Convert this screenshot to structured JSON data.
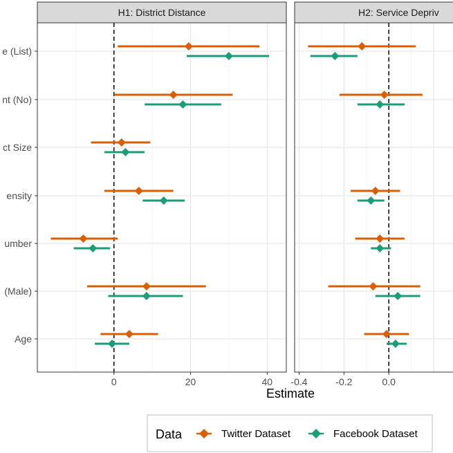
{
  "chart_data": {
    "type": "forest",
    "xlabel": "Estimate",
    "variables": [
      "Age",
      "(Male)",
      "umber",
      "ensity",
      "ct Size",
      "nt (No)",
      "e (List)"
    ],
    "panels": [
      {
        "title": "H1: District Distance",
        "xlim": [
          -20,
          45
        ],
        "xticks": [
          0,
          20,
          40
        ],
        "xtick_labels": [
          "0",
          "20",
          "40"
        ],
        "series": [
          {
            "name": "Twitter Dataset",
            "color": "#d95f02",
            "estimates": [
              4,
              8.5,
              -8,
              6.5,
              2,
              15.5,
              19.5
            ],
            "lower": [
              -3.5,
              -7,
              -16.5,
              -2.5,
              -6,
              0,
              1
            ],
            "upper": [
              11.5,
              24,
              1,
              15.5,
              9.5,
              31,
              38
            ]
          },
          {
            "name": "Facebook Dataset",
            "color": "#1b9e77",
            "estimates": [
              -0.5,
              8.5,
              -5.5,
              13,
              3,
              18,
              30
            ],
            "lower": [
              -5,
              -1.5,
              -10.5,
              7.5,
              -2.5,
              8,
              19
            ],
            "upper": [
              4,
              18,
              -1,
              18.5,
              8,
              28,
              40.5
            ]
          }
        ]
      },
      {
        "title": "H2: Service Depriv",
        "xlim": [
          -0.42,
          0.32
        ],
        "xticks": [
          -0.4,
          -0.2,
          0.0
        ],
        "xtick_labels": [
          "-0.4",
          "-0.2",
          "0.0"
        ],
        "series": [
          {
            "name": "Twitter Dataset",
            "color": "#d95f02",
            "estimates": [
              -0.01,
              -0.07,
              -0.04,
              -0.06,
              null,
              -0.02,
              -0.12
            ],
            "lower": [
              -0.11,
              -0.27,
              -0.15,
              -0.17,
              null,
              -0.22,
              -0.36
            ],
            "upper": [
              0.09,
              0.14,
              0.07,
              0.05,
              null,
              0.15,
              0.12
            ]
          },
          {
            "name": "Facebook Dataset",
            "color": "#1b9e77",
            "estimates": [
              0.03,
              0.04,
              -0.04,
              -0.08,
              null,
              -0.04,
              -0.24
            ],
            "lower": [
              -0.01,
              -0.06,
              -0.08,
              -0.14,
              null,
              -0.14,
              -0.35
            ],
            "upper": [
              0.08,
              0.14,
              0.01,
              -0.02,
              null,
              0.07,
              -0.14
            ]
          }
        ]
      }
    ],
    "reference_line": 0,
    "grid": true,
    "legend": {
      "title": "Data",
      "position": "bottom",
      "entries": [
        "Twitter Dataset",
        "Facebook Dataset"
      ]
    }
  }
}
